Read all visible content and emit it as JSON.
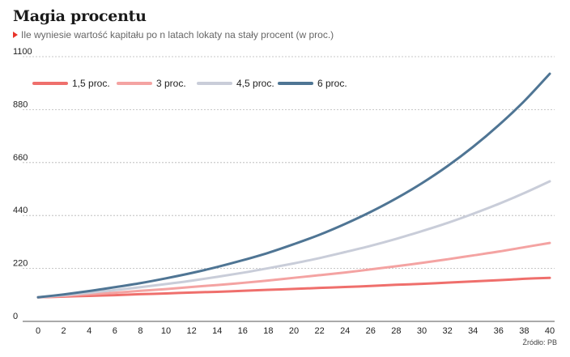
{
  "header": {
    "title": "Magia procentu",
    "subtitle": "Ile wyniesie wartość kapitału po n latach lokaty na stały procent (w proc.)"
  },
  "footer": {
    "source": "Źródło: PB"
  },
  "colors": {
    "accent_marker": "#e8332a",
    "grid": "#b5b5b5",
    "axis": "#555555"
  },
  "chart_data": {
    "type": "line",
    "title": "Magia procentu",
    "subtitle": "Ile wyniesie wartość kapitału po n latach lokaty na stały procent (w proc.)",
    "xlabel": "",
    "ylabel": "",
    "xlim": [
      0,
      40
    ],
    "ylim": [
      0,
      1100
    ],
    "x_ticks": [
      "0",
      "2",
      "4",
      "6",
      "8",
      "10",
      "12",
      "14",
      "16",
      "18",
      "20",
      "22",
      "24",
      "26",
      "28",
      "30",
      "32",
      "34",
      "36",
      "38",
      "40"
    ],
    "y_ticks": [
      "0",
      "220",
      "440",
      "660",
      "880",
      "1100"
    ],
    "grid": true,
    "legend_position": "top-left",
    "x": [
      0,
      2,
      4,
      6,
      8,
      10,
      12,
      14,
      16,
      18,
      20,
      22,
      24,
      26,
      28,
      30,
      32,
      34,
      36,
      38,
      40
    ],
    "series": [
      {
        "name": "1,5 proc.",
        "color": "#ef6f6c",
        "values": [
          100,
          103,
          106,
          109,
          113,
          116,
          120,
          123,
          127,
          131,
          135,
          139,
          143,
          147,
          152,
          156,
          161,
          166,
          171,
          177,
          181
        ]
      },
      {
        "name": "3 proc.",
        "color": "#f4a3a2",
        "values": [
          100,
          106,
          113,
          119,
          127,
          134,
          143,
          151,
          160,
          170,
          181,
          192,
          203,
          216,
          229,
          243,
          258,
          274,
          290,
          308,
          326
        ]
      },
      {
        "name": "4,5 proc.",
        "color": "#c9cdd9",
        "values": [
          100,
          109,
          119,
          130,
          142,
          155,
          169,
          185,
          202,
          221,
          241,
          263,
          288,
          314,
          343,
          375,
          409,
          447,
          488,
          533,
          582
        ]
      },
      {
        "name": "6 proc.",
        "color": "#4f7594",
        "values": [
          100,
          112,
          126,
          142,
          159,
          179,
          201,
          226,
          254,
          285,
          321,
          360,
          405,
          455,
          511,
          574,
          645,
          725,
          815,
          915,
          1029
        ]
      }
    ]
  }
}
